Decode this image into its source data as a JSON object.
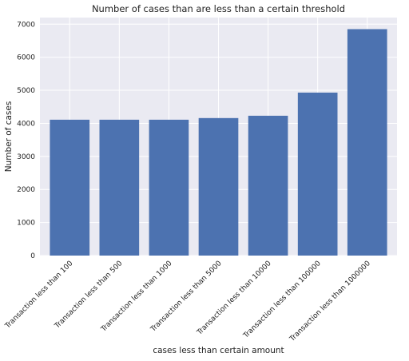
{
  "chart_data": {
    "type": "bar",
    "title": "Number of cases than are less than a certain threshold",
    "xlabel": "cases less than certain amount",
    "ylabel": "Number of cases",
    "categories": [
      "Transaction less than 100",
      "Transaction less than 500",
      "Transaction less than 1000",
      "Transaction less than 5000",
      "Transaction less than 10000",
      "Transaction less than 100000",
      "Transaction less than 1000000"
    ],
    "values": [
      4110,
      4110,
      4110,
      4160,
      4230,
      4930,
      6850
    ],
    "ylim": [
      0,
      7200
    ],
    "yticks": [
      0,
      1000,
      2000,
      3000,
      4000,
      5000,
      6000,
      7000
    ],
    "grid": true,
    "bar_color": "#4c72b0",
    "plot_background": "#eaeaf2"
  }
}
